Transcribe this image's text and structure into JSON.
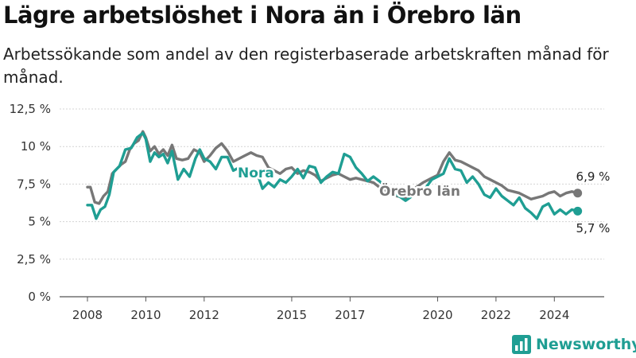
{
  "title": "Lägre arbetslöshet i Nora än i Örebro län",
  "subtitle": "Arbetssökande som andel av den registerbaserade arbetskraften månad för månad.",
  "brand": {
    "name": "Newsworthy",
    "icon": "bar-chart-logo-icon",
    "color": "#1f9e93"
  },
  "chart_data": {
    "type": "line",
    "y_ticks": [
      "0 %",
      "2,5 %",
      "5 %",
      "7,5 %",
      "10 %",
      "12,5 %"
    ],
    "y_tick_values": [
      0,
      2.5,
      5,
      7.5,
      10,
      12.5
    ],
    "x_ticks": [
      "2008",
      "2010",
      "2012",
      "2015",
      "2017",
      "2020",
      "2022",
      "2024"
    ],
    "x_tick_values": [
      2008,
      2010,
      2012,
      2015,
      2017,
      2020,
      2022,
      2024
    ],
    "ylim": [
      0,
      12.5
    ],
    "xlim": [
      2008,
      2025
    ],
    "grid": true,
    "series": [
      {
        "name": "Örebro län",
        "color": "#777777",
        "end_label": "6,9 %",
        "x": [
          2008.0,
          2008.1,
          2008.25,
          2008.4,
          2008.55,
          2008.7,
          2008.85,
          2009.0,
          2009.15,
          2009.3,
          2009.45,
          2009.6,
          2009.75,
          2009.9,
          2010.0,
          2010.15,
          2010.3,
          2010.45,
          2010.6,
          2010.75,
          2010.9,
          2011.05,
          2011.25,
          2011.45,
          2011.65,
          2011.85,
          2012.0,
          2012.2,
          2012.4,
          2012.6,
          2012.8,
          2013.0,
          2013.2,
          2013.4,
          2013.6,
          2013.8,
          2014.0,
          2014.2,
          2014.4,
          2014.6,
          2014.8,
          2015.0,
          2015.2,
          2015.4,
          2015.6,
          2015.8,
          2016.0,
          2016.2,
          2016.4,
          2016.6,
          2016.8,
          2017.0,
          2017.2,
          2017.4,
          2017.6,
          2017.8,
          2018.0,
          2018.3,
          2018.6,
          2018.9,
          2019.2,
          2019.5,
          2019.8,
          2020.0,
          2020.2,
          2020.4,
          2020.6,
          2020.8,
          2021.0,
          2021.2,
          2021.4,
          2021.6,
          2021.8,
          2022.0,
          2022.2,
          2022.4,
          2022.6,
          2022.8,
          2023.0,
          2023.2,
          2023.4,
          2023.6,
          2023.8,
          2024.0,
          2024.2,
          2024.4,
          2024.6,
          2024.8
        ],
        "y": [
          7.3,
          7.3,
          6.3,
          6.2,
          6.7,
          7.0,
          8.2,
          8.5,
          8.8,
          9.0,
          9.8,
          10.2,
          10.4,
          11.0,
          10.6,
          9.7,
          10.0,
          9.5,
          9.8,
          9.4,
          10.1,
          9.2,
          9.1,
          9.2,
          9.8,
          9.6,
          9.0,
          9.4,
          9.9,
          10.2,
          9.7,
          9.0,
          9.2,
          9.4,
          9.6,
          9.4,
          9.3,
          8.6,
          8.4,
          8.2,
          8.5,
          8.6,
          8.2,
          8.4,
          8.3,
          8.1,
          7.7,
          7.9,
          8.1,
          8.2,
          8.0,
          7.8,
          7.9,
          7.8,
          7.7,
          7.6,
          7.3,
          7.0,
          6.7,
          6.6,
          7.2,
          7.6,
          7.9,
          8.1,
          9.0,
          9.6,
          9.1,
          9.0,
          8.8,
          8.6,
          8.4,
          8.0,
          7.8,
          7.6,
          7.4,
          7.1,
          7.0,
          6.9,
          6.7,
          6.5,
          6.6,
          6.7,
          6.9,
          7.0,
          6.7,
          6.9,
          7.0,
          6.9
        ]
      },
      {
        "name": "Nora",
        "color": "#1f9e93",
        "end_label": "5,7 %",
        "x": [
          2008.0,
          2008.15,
          2008.3,
          2008.45,
          2008.6,
          2008.75,
          2008.9,
          2009.1,
          2009.3,
          2009.5,
          2009.7,
          2009.9,
          2010.0,
          2010.15,
          2010.3,
          2010.45,
          2010.6,
          2010.75,
          2010.9,
          2011.1,
          2011.3,
          2011.5,
          2011.7,
          2011.85,
          2012.0,
          2012.2,
          2012.4,
          2012.6,
          2012.8,
          2013.0,
          2013.2,
          2013.4,
          2013.6,
          2013.8,
          2014.0,
          2014.2,
          2014.4,
          2014.6,
          2014.8,
          2015.0,
          2015.2,
          2015.4,
          2015.6,
          2015.8,
          2016.0,
          2016.2,
          2016.4,
          2016.6,
          2016.8,
          2017.0,
          2017.2,
          2017.4,
          2017.6,
          2017.8,
          2018.0,
          2018.3,
          2018.6,
          2018.9,
          2019.2,
          2019.5,
          2019.8,
          2020.0,
          2020.2,
          2020.4,
          2020.6,
          2020.8,
          2021.0,
          2021.2,
          2021.4,
          2021.6,
          2021.8,
          2022.0,
          2022.2,
          2022.4,
          2022.6,
          2022.8,
          2023.0,
          2023.2,
          2023.4,
          2023.6,
          2023.8,
          2024.0,
          2024.2,
          2024.4,
          2024.6,
          2024.8
        ],
        "y": [
          6.1,
          6.1,
          5.2,
          5.8,
          6.0,
          6.8,
          8.3,
          8.7,
          9.8,
          9.9,
          10.6,
          10.9,
          10.5,
          9.0,
          9.6,
          9.3,
          9.5,
          8.9,
          9.7,
          7.8,
          8.5,
          8.0,
          9.2,
          9.8,
          9.2,
          9.0,
          8.5,
          9.3,
          9.3,
          8.4,
          8.6,
          8.2,
          8.0,
          8.3,
          7.2,
          7.6,
          7.3,
          7.8,
          7.6,
          8.0,
          8.5,
          7.9,
          8.7,
          8.6,
          7.6,
          8.0,
          8.3,
          8.2,
          9.5,
          9.3,
          8.6,
          8.2,
          7.7,
          8.0,
          7.7,
          7.2,
          6.8,
          6.4,
          6.8,
          7.0,
          7.8,
          8.0,
          8.2,
          9.2,
          8.5,
          8.4,
          7.6,
          8.0,
          7.5,
          6.8,
          6.6,
          7.2,
          6.7,
          6.4,
          6.1,
          6.6,
          5.9,
          5.6,
          5.2,
          6.0,
          6.2,
          5.5,
          5.8,
          5.5,
          5.8,
          5.7
        ]
      }
    ]
  }
}
